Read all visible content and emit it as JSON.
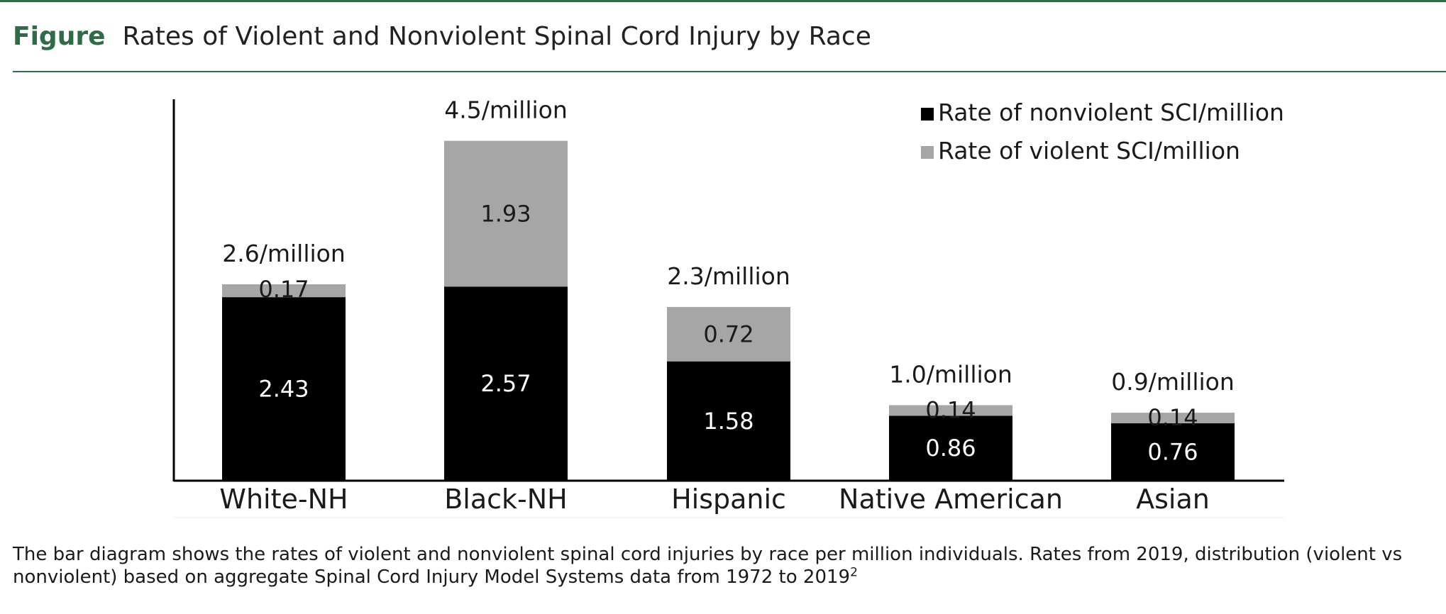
{
  "figure": {
    "label": "Figure",
    "title": "Rates of Violent and Nonviolent Spinal Cord Injury by Race",
    "caption": "The bar diagram shows the rates of violent and nonviolent spinal cord injuries by race per million individuals. Rates from 2019, distribution (violent vs nonviolent) based on aggregate Spinal Cord Injury Model Systems data from 1972 to 2019",
    "caption_ref": "2"
  },
  "colors": {
    "accent": "#2e6b47",
    "nonviolent": "#000000",
    "violent": "#a6a6a6"
  },
  "chart_data": {
    "type": "bar",
    "stacked": true,
    "title": "",
    "xlabel": "",
    "ylabel": "",
    "ylim": [
      0,
      5.05
    ],
    "grid": false,
    "legend_position": "top-right",
    "categories": [
      "White-NH",
      "Black-NH",
      "Hispanic",
      "Native American",
      "Asian"
    ],
    "series": [
      {
        "name": "Rate of nonviolent SCI/million",
        "color": "#000000",
        "values": [
          2.43,
          2.57,
          1.58,
          0.86,
          0.76
        ],
        "labels": [
          "2.43",
          "2.57",
          "1.58",
          "0.86",
          "0.76"
        ]
      },
      {
        "name": "Rate of violent SCI/million",
        "color": "#a6a6a6",
        "values": [
          0.17,
          1.93,
          0.72,
          0.14,
          0.14
        ],
        "labels": [
          "0.17",
          "1.93",
          "0.72",
          "0.14",
          "0.14"
        ]
      }
    ],
    "totals": [
      "2.6/million",
      "4.5/million",
      "2.3/million",
      "1.0/million",
      "0.9/million"
    ]
  }
}
